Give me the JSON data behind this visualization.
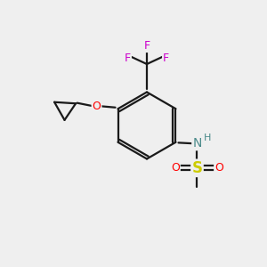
{
  "background_color": "#efefef",
  "bond_color": "#1a1a1a",
  "atom_colors": {
    "F": "#cc00cc",
    "O": "#ff0000",
    "N": "#4a8a8a",
    "S": "#cccc00",
    "H": "#4a8a8a",
    "C": "#1a1a1a"
  },
  "figsize": [
    3.0,
    3.0
  ],
  "dpi": 100
}
